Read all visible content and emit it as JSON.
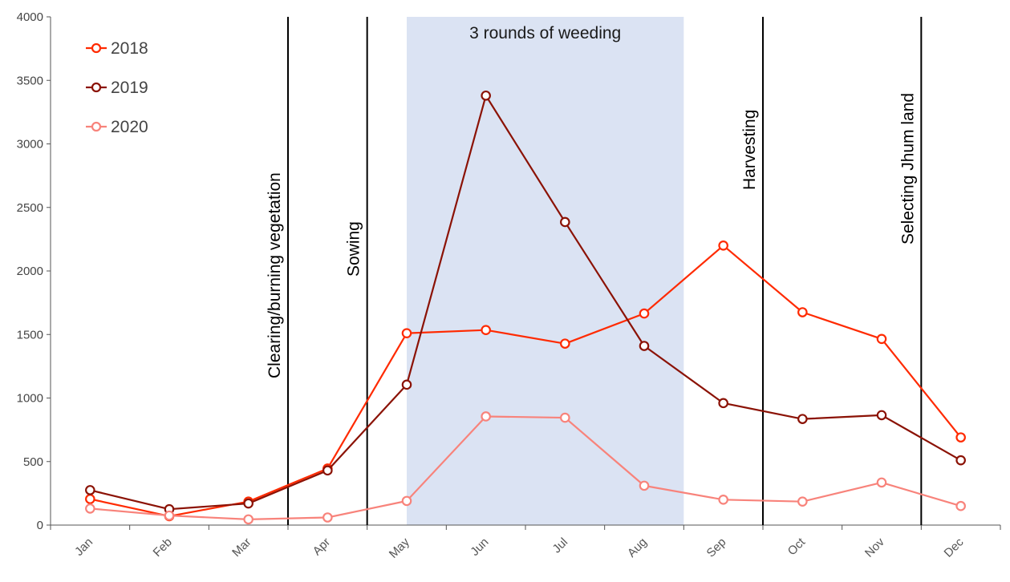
{
  "chart_data": {
    "type": "line",
    "categories": [
      "Jan",
      "Feb",
      "Mar",
      "Apr",
      "May",
      "Jun",
      "Jul",
      "Aug",
      "Sep",
      "Oct",
      "Nov",
      "Dec"
    ],
    "series": [
      {
        "name": "2018",
        "color": "#ff2a00",
        "values": [
          205,
          70,
          185,
          445,
          1510,
          1535,
          1428,
          1665,
          2200,
          1675,
          1465,
          690
        ]
      },
      {
        "name": "2019",
        "color": "#8b1205",
        "values": [
          275,
          125,
          170,
          430,
          1105,
          3380,
          2385,
          1410,
          960,
          835,
          865,
          510
        ]
      },
      {
        "name": "2020",
        "color": "#f8837b",
        "values": [
          130,
          75,
          45,
          60,
          190,
          855,
          845,
          310,
          200,
          185,
          335,
          150
        ]
      }
    ],
    "ylim": [
      0,
      4000
    ],
    "yticks": [
      0,
      500,
      1000,
      1500,
      2000,
      2500,
      3000,
      3500,
      4000
    ],
    "ytick_labels": [
      "0",
      "500",
      "1000",
      "1500",
      "2000",
      "2500",
      "3000",
      "3500",
      "4000"
    ],
    "grid": false,
    "legend_position": "top-left",
    "shaded_region": {
      "from": "May",
      "to": "Aug",
      "label": "3 rounds of weeding",
      "color": "#dbe3f3"
    },
    "phase_markers": [
      {
        "label": "Clearing/burning vegetation",
        "after": "Mar"
      },
      {
        "label": "Sowing",
        "after": "Apr"
      },
      {
        "label": "Harvesting",
        "after": "Sep"
      },
      {
        "label": "Selecting Jhum land",
        "after": "Nov"
      }
    ]
  }
}
